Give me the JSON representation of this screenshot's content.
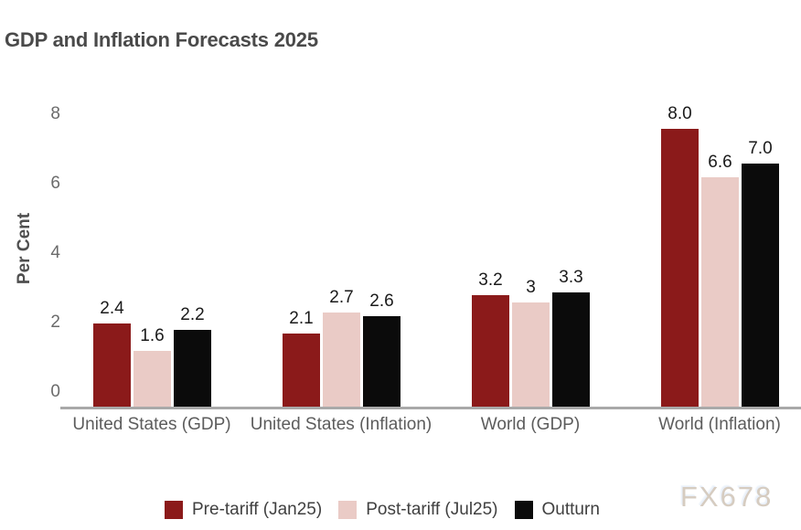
{
  "title": "GDP and Inflation Forecasts 2025",
  "watermark": "FX678",
  "chart_data": {
    "type": "bar",
    "title": "GDP and Inflation Forecasts 2025",
    "xlabel": "",
    "ylabel": "Per Cent",
    "categories": [
      "United States (GDP)",
      "United States (Inflation)",
      "World (GDP)",
      "World (Inflation)"
    ],
    "series": [
      {
        "name": "Pre-tariff (Jan25)",
        "color": "#8B1A1A",
        "values": [
          2.4,
          2.1,
          3.2,
          8.0
        ],
        "labels": [
          "2.4",
          "2.1",
          "3.2",
          "8.0"
        ]
      },
      {
        "name": "Post-tariff (Jul25)",
        "color": "#EACBC6",
        "values": [
          1.6,
          2.7,
          3.0,
          6.6
        ],
        "labels": [
          "1.6",
          "2.7",
          "3",
          "6.6"
        ]
      },
      {
        "name": "Outturn",
        "color": "#0B0B0B",
        "values": [
          2.2,
          2.6,
          3.3,
          7.0
        ],
        "labels": [
          "2.2",
          "2.6",
          "3.3",
          "7.0"
        ]
      }
    ],
    "yticks": [
      0,
      2,
      4,
      6,
      8
    ],
    "ylim": [
      0,
      8.6
    ],
    "grid": false,
    "legend_position": "bottom",
    "axis_line_color": "#A9A9A9",
    "colors": {
      "title_text": "#4A4A4A",
      "axis_text": "#6B6B6B",
      "category_text": "#5C5C5C",
      "value_label_text": "#1A1A1A",
      "legend_text": "#404040",
      "watermark_text": "#D6CCC0"
    }
  }
}
